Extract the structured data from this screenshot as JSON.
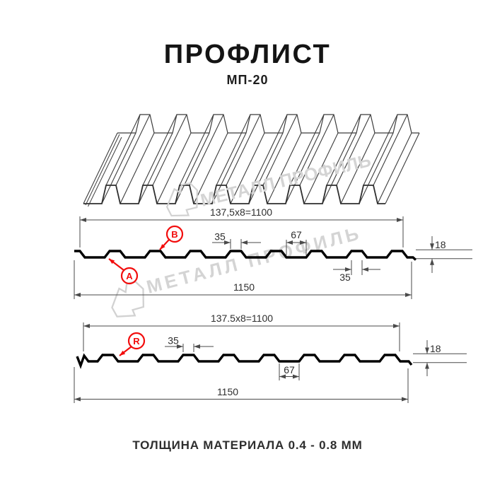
{
  "header": {
    "title": "ПРОФЛИСТ",
    "subtitle": "МП-20"
  },
  "watermark": {
    "text": "МЕТАЛЛ ПРОФИЛЬ"
  },
  "section1": {
    "top_width": "137,5x8=1100",
    "rib_top_width": "35",
    "valley_width": "67",
    "height": "18",
    "rib_base_width": "35",
    "total_width": "1150",
    "label_a": "А",
    "label_b": "В"
  },
  "section2": {
    "top_width": "137.5x8=1100",
    "rib_top_width": "35",
    "valley_width": "67",
    "height": "18",
    "total_width": "1150",
    "label_r": "R"
  },
  "footer": {
    "thickness_note": "ТОЛЩИНА МАТЕРИАЛА 0.4 - 0.8 ММ"
  },
  "colors": {
    "accent_red": "#f20c0c",
    "line_gray": "#4a4a4a",
    "watermark_gray": "#d4d4d4",
    "profile_black": "#000000"
  }
}
